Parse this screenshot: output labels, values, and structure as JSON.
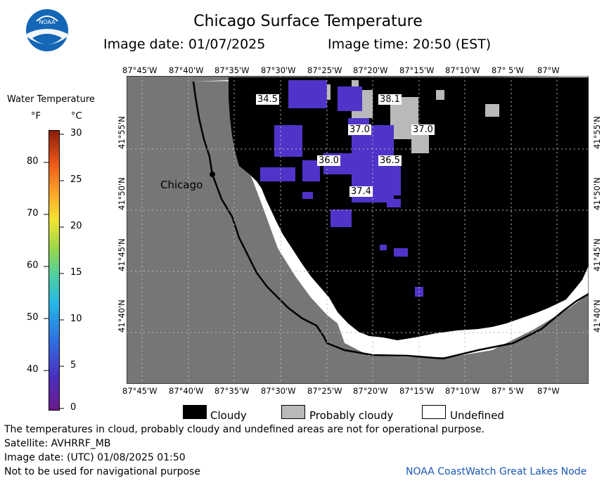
{
  "header": {
    "title": "Chicago Surface Temperature",
    "image_date": "Image date: 01/07/2025",
    "image_time": "Image time: 20:50 (EST)",
    "logo_text": "NOAA"
  },
  "legend": {
    "title": "Water Temperature",
    "unit_f": "°F",
    "unit_c": "°C",
    "ticks_f": [
      "80",
      "70",
      "60",
      "50",
      "40"
    ],
    "ticks_c": [
      "30",
      "25",
      "20",
      "15",
      "10",
      "5",
      "0"
    ]
  },
  "map": {
    "lon_labels_top": [
      "87°45'W",
      "87°40'W",
      "87°35'W",
      "87°30'W",
      "87°25'W",
      "87°20'W",
      "87°15'W",
      "87°10'W",
      "87° 5'W",
      "87°W"
    ],
    "lon_labels_bottom": [
      "87°45'W",
      "87°40'W",
      "87°35'W",
      "87°30'W",
      "87°25'W",
      "87°20'W",
      "87°15'W",
      "87°10'W",
      "87° 5'W",
      "87°W"
    ],
    "lat_labels": [
      "41°55'N",
      "41°50'N",
      "41°45'N",
      "41°40'N"
    ],
    "city_label": "Chicago",
    "temperature_labels": [
      "34.5",
      "38.1",
      "37.0",
      "37.0",
      "36.0",
      "36.5",
      "37.4"
    ],
    "colors": {
      "land": "#767676",
      "cloud": "#000000",
      "probably_cloudy": "#b9b9b9",
      "undefined": "#ffffff",
      "water_cold": "#5033c8"
    }
  },
  "key": {
    "cloudy": "Cloudy",
    "probably_cloudy": "Probably cloudy",
    "undefined": "Undefined"
  },
  "footer": {
    "disclaimer": "The temperatures in cloud, probably cloudy and undefined areas are not for operational purpose.",
    "satellite": "Satellite: AVHRRF_MB",
    "utc_date": "Image date: (UTC) 01/08/2025  01:50",
    "navigation": "Not to be used for navigational purpose",
    "credit": "NOAA CoastWatch Great Lakes Node"
  }
}
